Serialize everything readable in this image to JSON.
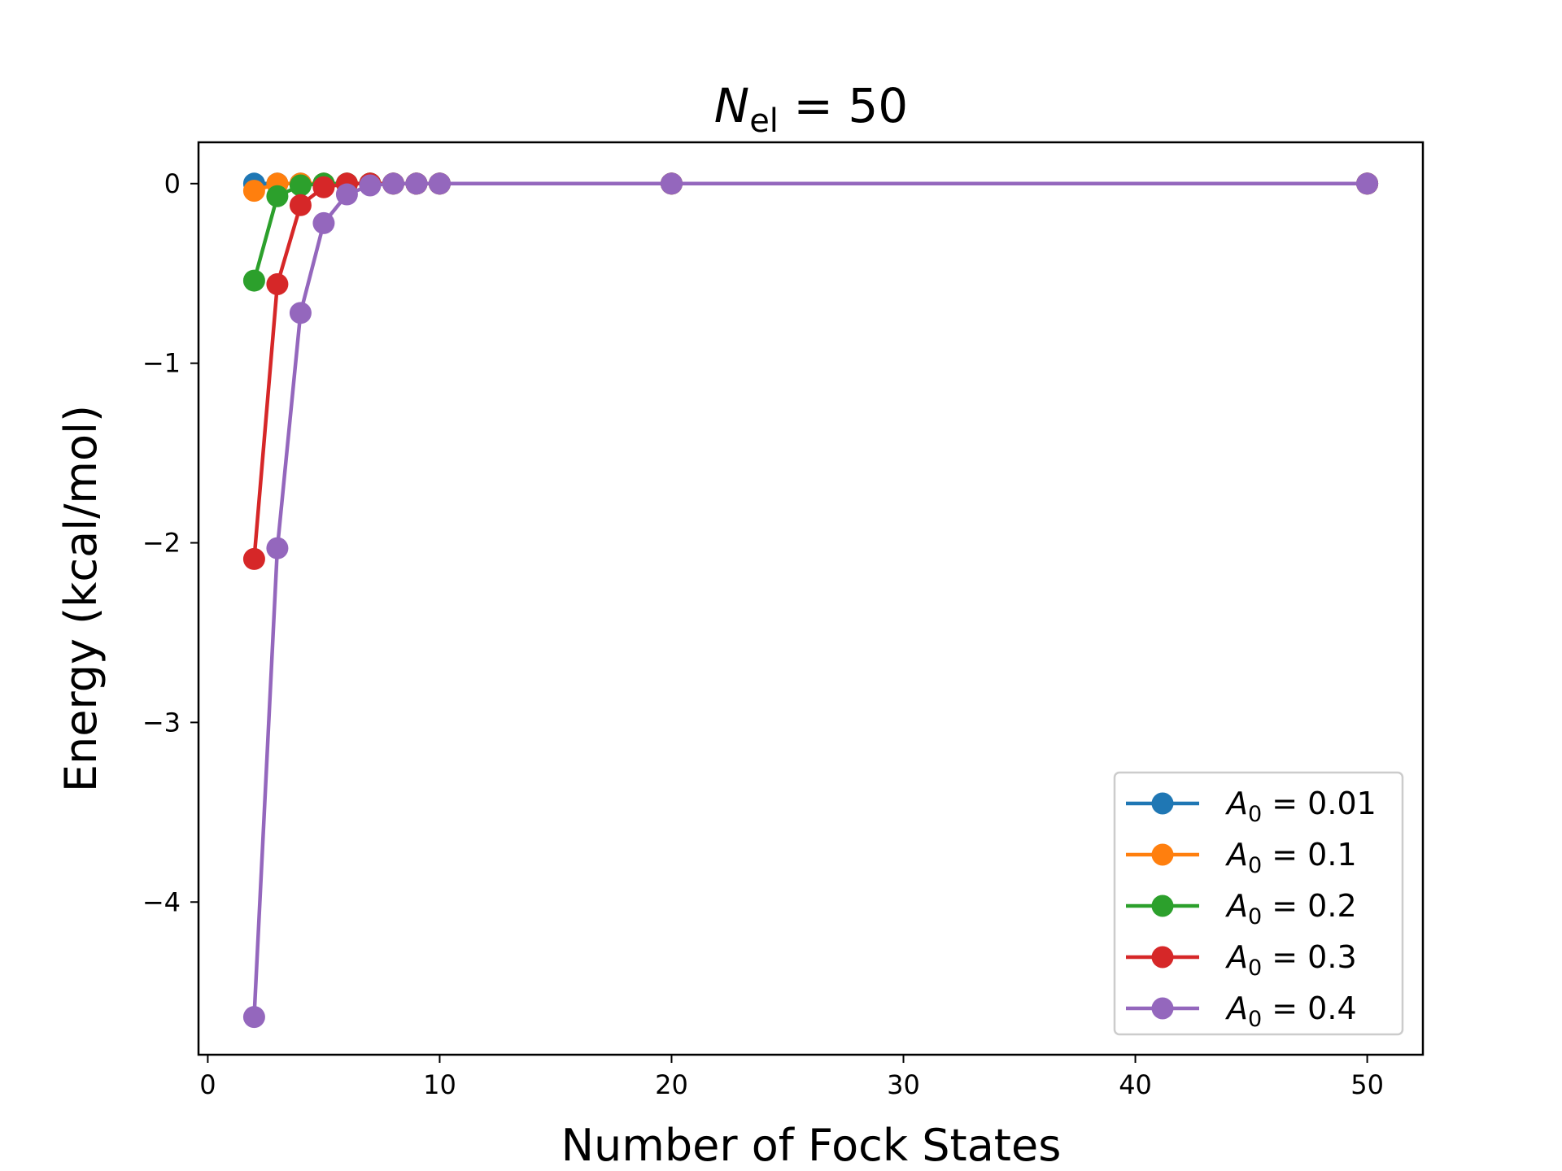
{
  "chart_data": {
    "type": "line",
    "title": {
      "symbol": "N",
      "subscript": "el",
      "rest": " = 50"
    },
    "xlabel": "Number of Fock States",
    "ylabel": "Energy (kcal/mol)",
    "xlim": [
      -0.4,
      52.4
    ],
    "ylim": [
      -4.85,
      0.23
    ],
    "xticks": [
      0,
      10,
      20,
      30,
      40,
      50
    ],
    "yticks": [
      0,
      -1,
      -2,
      -3,
      -4
    ],
    "xtick_labels": [
      "0",
      "10",
      "20",
      "30",
      "40",
      "50"
    ],
    "ytick_labels": [
      "0",
      "−1",
      "−2",
      "−3",
      "−4"
    ],
    "grid": false,
    "legend_position": "lower-right",
    "x": [
      2,
      3,
      4,
      5,
      6,
      7,
      8,
      9,
      10,
      20,
      50
    ],
    "series": [
      {
        "name_symbol": "A",
        "name_subscript": "0",
        "name_rest": " = 0.01",
        "color": "#1f77b4",
        "values": [
          0.0,
          0.0,
          0.0,
          0.0,
          0.0,
          0.0,
          0.0,
          0.0,
          0.0,
          0.0,
          0.0
        ]
      },
      {
        "name_symbol": "A",
        "name_subscript": "0",
        "name_rest": " = 0.1",
        "color": "#ff7f0e",
        "values": [
          -0.04,
          0.0,
          0.0,
          0.0,
          0.0,
          0.0,
          0.0,
          0.0,
          0.0,
          0.0,
          0.0
        ]
      },
      {
        "name_symbol": "A",
        "name_subscript": "0",
        "name_rest": " = 0.2",
        "color": "#2ca02c",
        "values": [
          -0.54,
          -0.07,
          -0.01,
          0.0,
          0.0,
          0.0,
          0.0,
          0.0,
          0.0,
          0.0,
          0.0
        ]
      },
      {
        "name_symbol": "A",
        "name_subscript": "0",
        "name_rest": " = 0.3",
        "color": "#d62728",
        "values": [
          -2.09,
          -0.56,
          -0.12,
          -0.02,
          0.0,
          0.0,
          0.0,
          0.0,
          0.0,
          0.0,
          0.0
        ]
      },
      {
        "name_symbol": "A",
        "name_subscript": "0",
        "name_rest": " = 0.4",
        "color": "#9467bd",
        "values": [
          -4.64,
          -2.03,
          -0.72,
          -0.22,
          -0.06,
          -0.01,
          0.0,
          0.0,
          0.0,
          0.0,
          0.0
        ]
      }
    ]
  }
}
